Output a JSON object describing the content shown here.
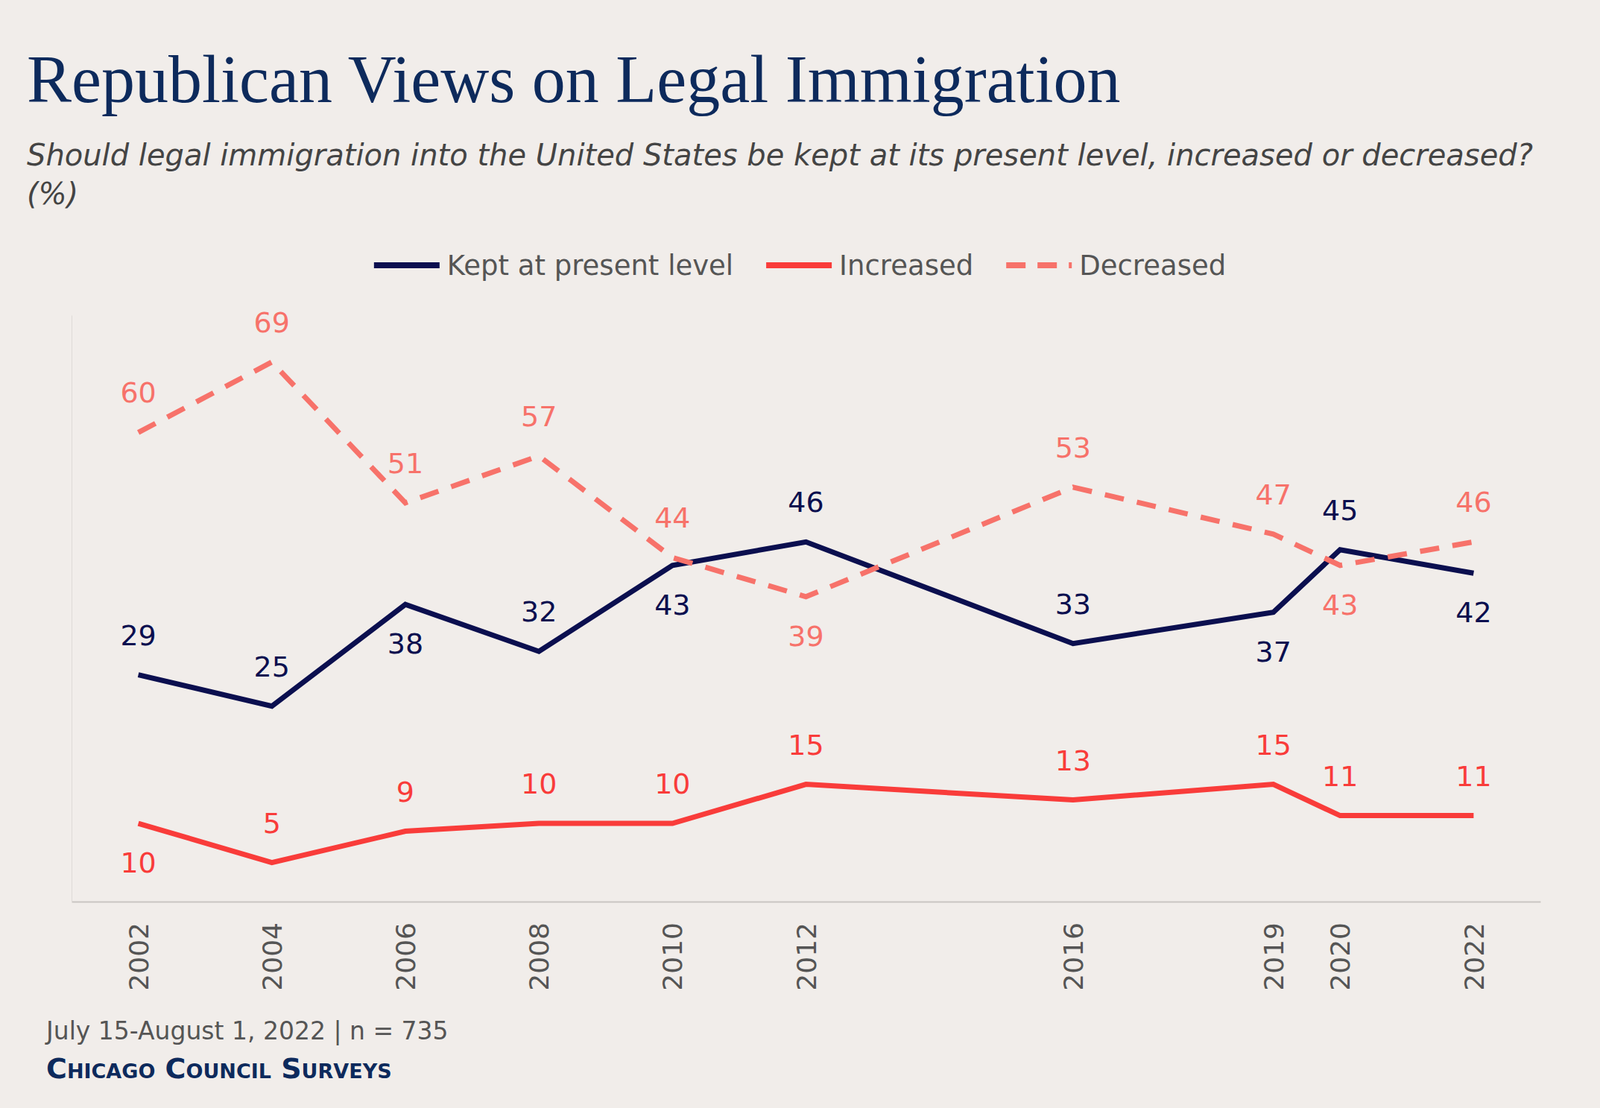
{
  "chart_data": {
    "type": "line",
    "title": "Republican Views on Legal Immigration",
    "subtitle": "Should legal immigration into the United States be kept at its present level, increased or decreased? (%)",
    "note": "July 15-August 1, 2022 | n = 735",
    "source": "Chicago Council Surveys",
    "x": [
      2002,
      2004,
      2006,
      2008,
      2010,
      2012,
      2016,
      2019,
      2020,
      2022
    ],
    "xlim": [
      2001,
      2023
    ],
    "xticks": [
      2002,
      2004,
      2006,
      2008,
      2010,
      2012,
      2016,
      2019,
      2020,
      2022
    ],
    "ylim": [
      0,
      75
    ],
    "yticks": [],
    "grid": false,
    "legend": "top",
    "data_labels": true,
    "tick_labels": "x",
    "series": [
      {
        "name": "Kept at present level",
        "color": "#0b0f4f",
        "line_style": "solid",
        "values": [
          29,
          25,
          38,
          32,
          43,
          46,
          33,
          37,
          45,
          42
        ]
      },
      {
        "name": "Increased",
        "color": "#f93c3a",
        "line_style": "solid",
        "values": [
          10,
          5,
          9,
          10,
          10,
          15,
          13,
          15,
          11,
          11
        ]
      },
      {
        "name": "Decreased",
        "color": "#f7726a",
        "line_style": "dashed",
        "values": [
          60,
          69,
          51,
          57,
          44,
          39,
          53,
          47,
          43,
          46
        ]
      }
    ]
  }
}
